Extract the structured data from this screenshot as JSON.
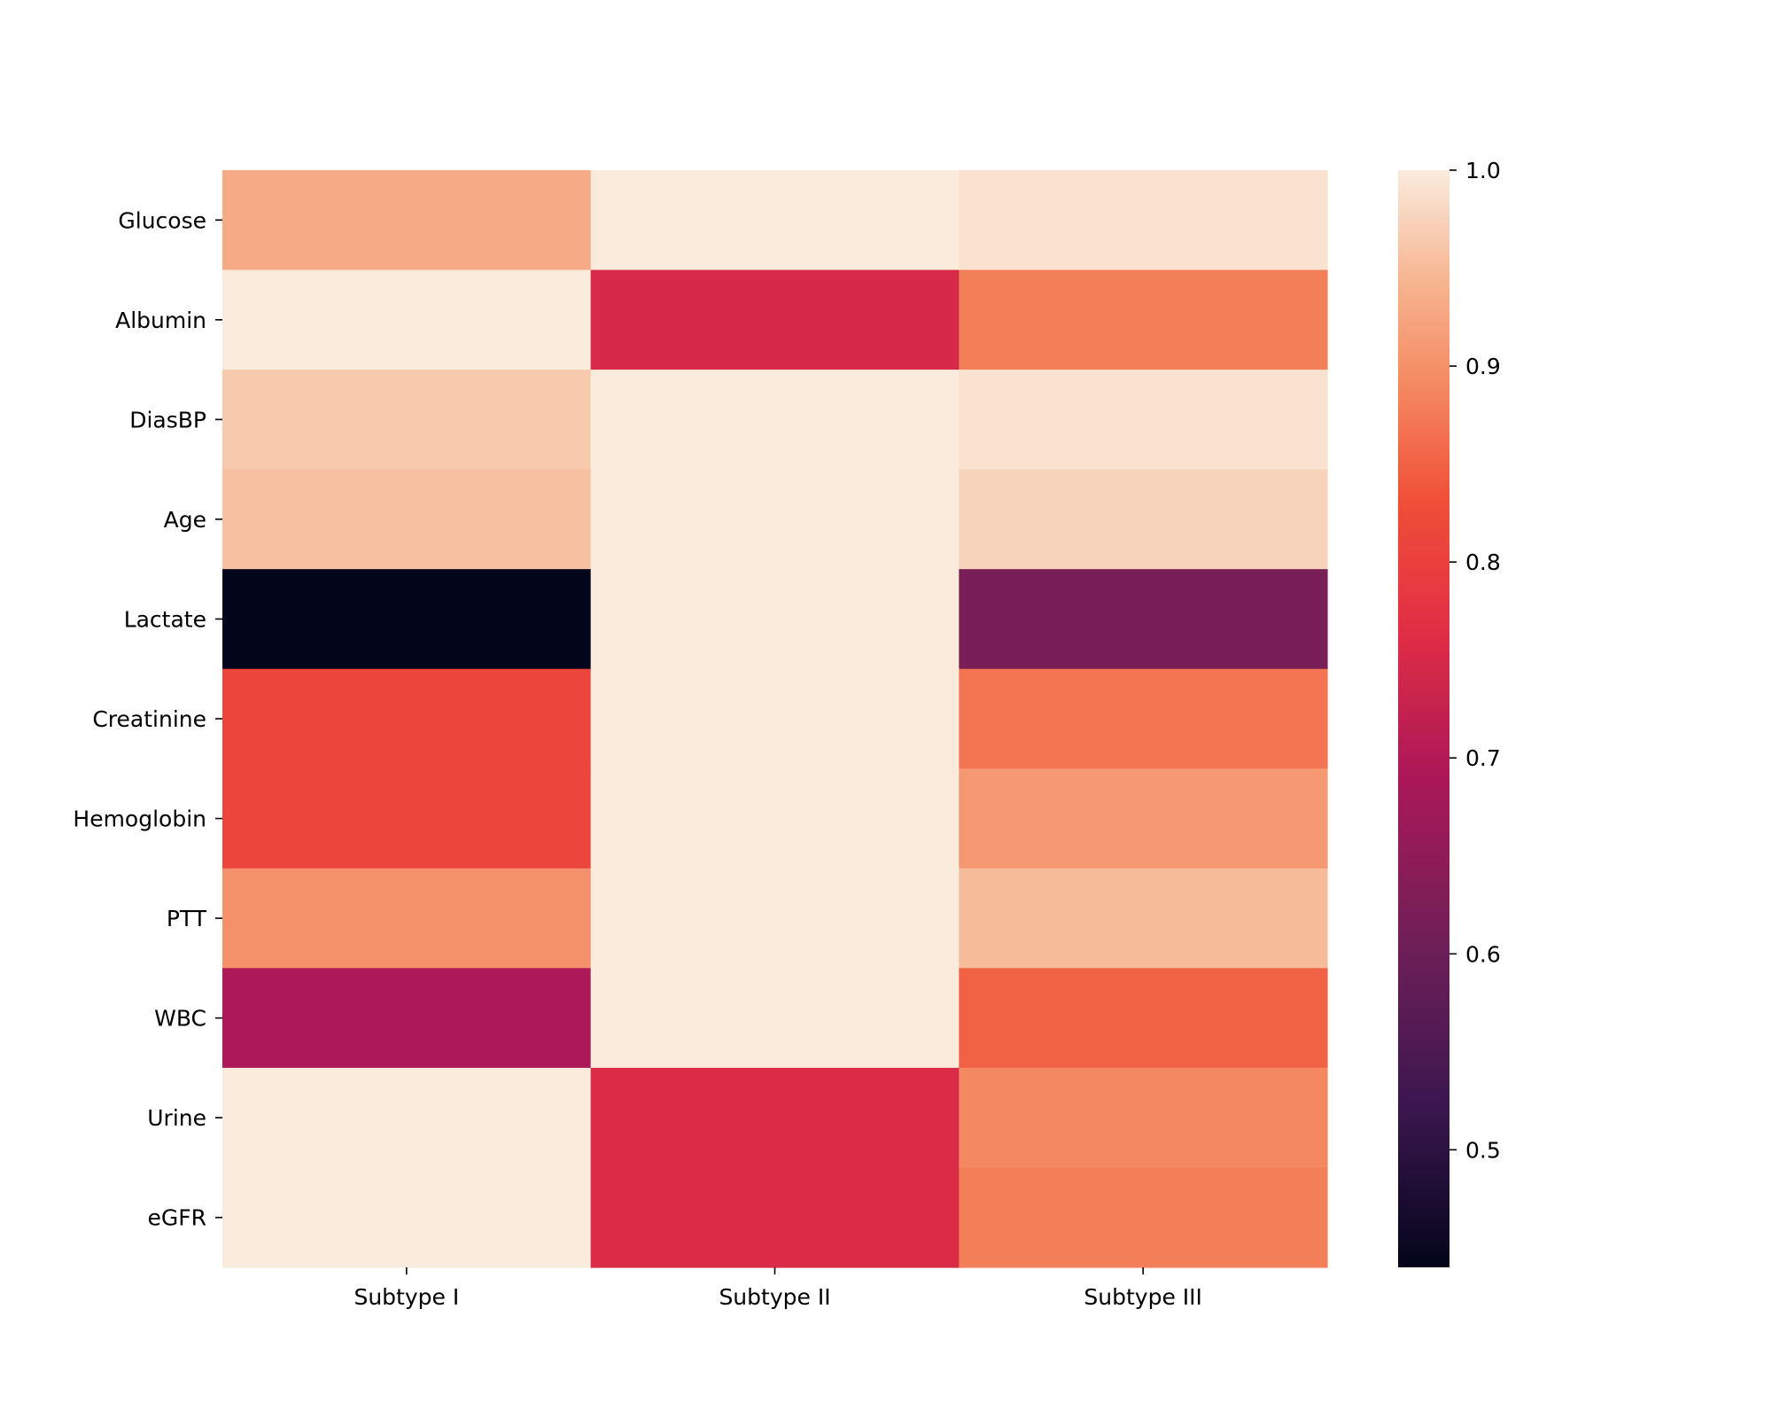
{
  "chart_data": {
    "type": "heatmap",
    "title": "",
    "xlabel": "",
    "ylabel": "",
    "columns": [
      "Subtype I",
      "Subtype II",
      "Subtype III"
    ],
    "rows": [
      "Glucose",
      "Albumin ",
      "DiasBP",
      "Age",
      "Lactate",
      "Creatinine",
      "Hemoglobin",
      "PTT",
      "WBC",
      "Urine",
      "eGFR"
    ],
    "values": [
      [
        0.93,
        1.0,
        0.99
      ],
      [
        1.0,
        0.75,
        0.88
      ],
      [
        0.965,
        1.0,
        0.99
      ],
      [
        0.955,
        1.0,
        0.975
      ],
      [
        0.44,
        1.0,
        0.62
      ],
      [
        0.81,
        1.0,
        0.87
      ],
      [
        0.81,
        1.0,
        0.91
      ],
      [
        0.9,
        1.0,
        0.95
      ],
      [
        0.69,
        1.0,
        0.85
      ],
      [
        1.0,
        0.755,
        0.89
      ],
      [
        1.0,
        0.755,
        0.88
      ]
    ],
    "colorbar": {
      "vmin": 0.44,
      "vmax": 1.0,
      "ticks": [
        "0.5",
        "0.6",
        "0.7",
        "0.8",
        "0.9",
        "1.0"
      ],
      "colormap": "rocket",
      "placement": "right"
    },
    "grid": false
  }
}
